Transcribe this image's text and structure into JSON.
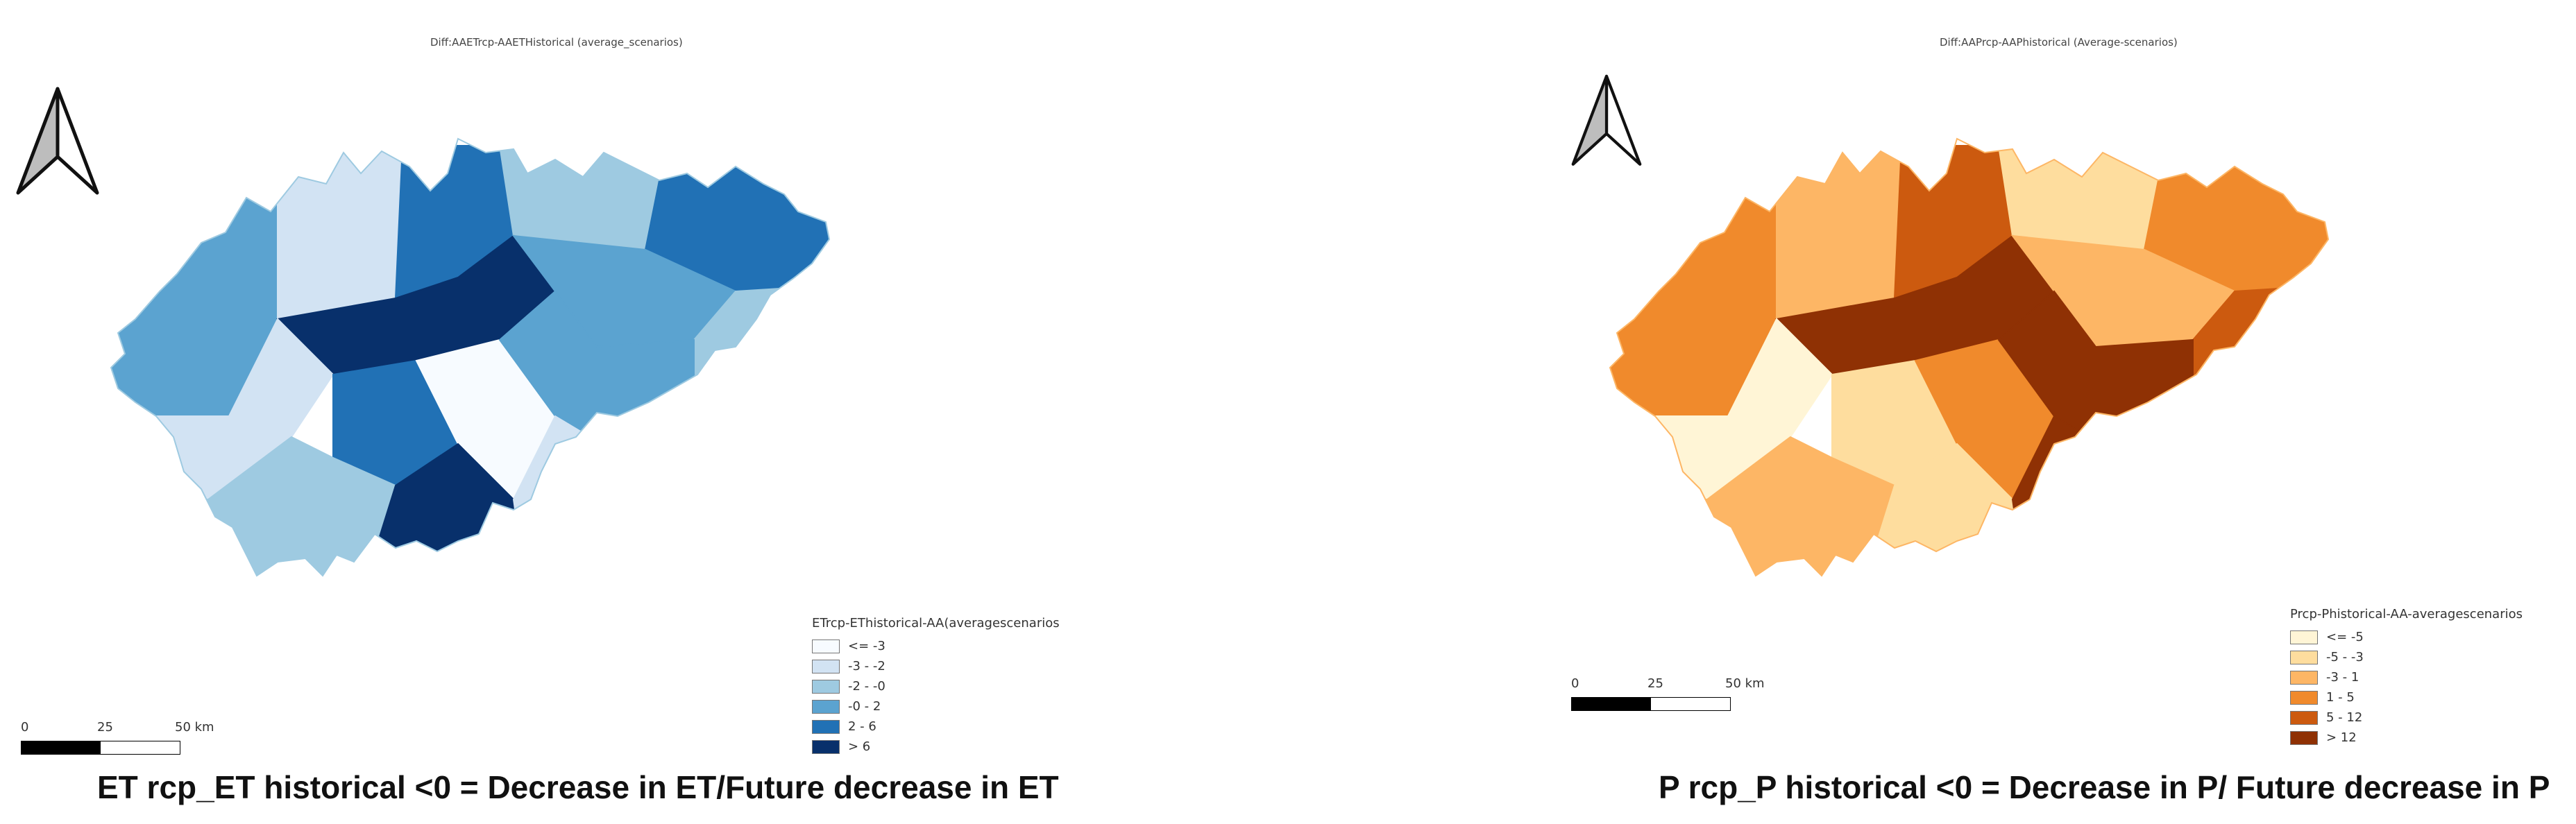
{
  "maps": [
    {
      "title": "Diff:AAETrcp-AAETHistorical (average_scenarios)",
      "legend_title": "ETrcp-EThistorical-AA(averagescenarios",
      "legend": [
        {
          "label": "<= -3",
          "color": "#f7fbff"
        },
        {
          "label": "-3 - -2",
          "color": "#d2e3f3"
        },
        {
          "label": "-2 - -0",
          "color": "#9ecae1"
        },
        {
          "label": "-0 - 2",
          "color": "#5ba3d0"
        },
        {
          "label": "2 - 6",
          "color": "#2171b5"
        },
        {
          "label": "> 6",
          "color": "#08306b"
        }
      ],
      "scale": {
        "tick0": "0",
        "tick1": "25",
        "tick2": "50 km"
      },
      "caption": "ET rcp_ET historical <0 = Decrease in ET/Future decrease in ET"
    },
    {
      "title": "Diff:AAPrcp-AAPhistorical (Average-scenarios)",
      "legend_title": "Prcp-Phistorical-AA-averagescenarios",
      "legend": [
        {
          "label": "<= -5",
          "color": "#fff5d6"
        },
        {
          "label": "-5 - -3",
          "color": "#fedd9e"
        },
        {
          "label": "-3 - 1",
          "color": "#fdb665"
        },
        {
          "label": "1 - 5",
          "color": "#f08a2c"
        },
        {
          "label": "5 - 12",
          "color": "#cc5a0f"
        },
        {
          "label": "> 12",
          "color": "#8f3104"
        }
      ],
      "scale": {
        "tick0": "0",
        "tick1": "25",
        "tick2": "50 km"
      },
      "caption": "P rcp_P historical <0 = Decrease in P/ Future decrease in P"
    }
  ]
}
